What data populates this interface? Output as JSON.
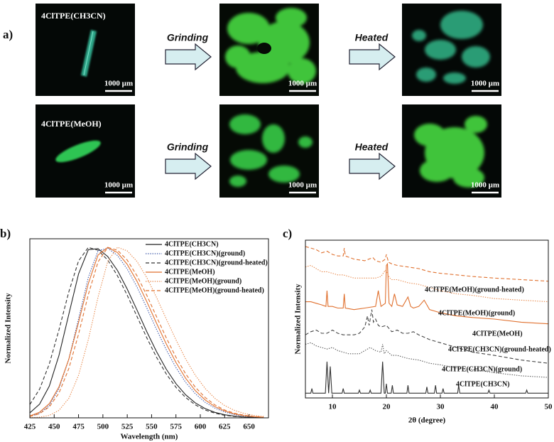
{
  "panel_a": {
    "label": "a)",
    "steps": [
      "Grinding",
      "Heated"
    ],
    "rows": [
      {
        "sample": "4ClTPE(CH3CN)",
        "scale_bars": [
          "1000 µm",
          "1000 µm",
          "1000 µm"
        ]
      },
      {
        "sample": "4ClTPE(MeOH)",
        "scale_bars": [
          "1000 µm",
          "1000 µm",
          "1000 µm"
        ]
      }
    ]
  },
  "chart_data": [
    {
      "type": "line",
      "panel_label": "b)",
      "xlabel": "Wavelength (nm)",
      "ylabel": "Normalized Intensity",
      "xlim": [
        425,
        670
      ],
      "xticks": [
        425,
        450,
        475,
        500,
        525,
        550,
        575,
        600,
        625,
        650
      ],
      "ylim": [
        0,
        1.05
      ],
      "legend": "top-right",
      "x": [
        425,
        435,
        445,
        455,
        465,
        475,
        485,
        495,
        505,
        515,
        525,
        535,
        545,
        555,
        565,
        575,
        585,
        595,
        605,
        615,
        625,
        635,
        645,
        655,
        665
      ],
      "series": [
        {
          "name": "4ClTPE(CH3CN)",
          "color": "#222222",
          "style": "solid",
          "values": [
            0.029,
            0.08,
            0.186,
            0.367,
            0.607,
            0.844,
            0.986,
            0.992,
            0.946,
            0.864,
            0.755,
            0.632,
            0.506,
            0.389,
            0.286,
            0.201,
            0.135,
            0.087,
            0.054,
            0.032,
            0.018,
            0.01,
            0.005,
            0.003,
            0.001
          ]
        },
        {
          "name": "4ClTPE(CH3CN)(ground)",
          "color": "#3a55a8",
          "style": "dotted",
          "values": [
            0.008,
            0.026,
            0.072,
            0.172,
            0.345,
            0.581,
            0.823,
            0.979,
            0.995,
            0.952,
            0.873,
            0.767,
            0.645,
            0.519,
            0.4,
            0.295,
            0.208,
            0.141,
            0.091,
            0.057,
            0.034,
            0.019,
            0.01,
            0.005,
            0.003
          ]
        },
        {
          "name": "4ClTPE(CH3CN)(ground-heated)",
          "color": "#333333",
          "style": "dashed",
          "values": [
            0.078,
            0.168,
            0.316,
            0.517,
            0.739,
            0.92,
            0.999,
            0.983,
            0.925,
            0.833,
            0.719,
            0.594,
            0.47,
            0.356,
            0.258,
            0.179,
            0.119,
            0.076,
            0.046,
            0.027,
            0.015,
            0.008,
            0.004,
            0.002,
            0.001
          ]
        },
        {
          "name": "4ClTPE(MeOH)",
          "color": "#e0702e",
          "style": "solid",
          "values": [
            0.011,
            0.033,
            0.083,
            0.182,
            0.344,
            0.56,
            0.787,
            0.954,
            0.999,
            0.969,
            0.9,
            0.801,
            0.682,
            0.556,
            0.434,
            0.325,
            0.232,
            0.159,
            0.105,
            0.066,
            0.04,
            0.023,
            0.013,
            0.007,
            0.003
          ]
        },
        {
          "name": "4ClTPE(MeOH)(ground)",
          "color": "#e8884a",
          "style": "dotted",
          "values": [
            0.001,
            0.004,
            0.014,
            0.044,
            0.114,
            0.249,
            0.458,
            0.707,
            0.917,
            1,
            0.979,
            0.917,
            0.823,
            0.707,
            0.581,
            0.458,
            0.345,
            0.249,
            0.172,
            0.114,
            0.072,
            0.044,
            0.026,
            0.014,
            0.008
          ]
        },
        {
          "name": "4ClTPE(MeOH)(ground-heated)",
          "color": "#e0702e",
          "style": "dashed",
          "values": [
            0.008,
            0.024,
            0.064,
            0.146,
            0.289,
            0.491,
            0.722,
            0.914,
            0.999,
            0.983,
            0.925,
            0.833,
            0.719,
            0.594,
            0.47,
            0.356,
            0.258,
            0.179,
            0.119,
            0.076,
            0.046,
            0.027,
            0.015,
            0.008,
            0.004
          ]
        }
      ]
    },
    {
      "type": "line",
      "panel_label": "c)",
      "xlabel": "2θ (degree)",
      "ylabel": "Normalized Intensity",
      "xlim": [
        5,
        50
      ],
      "xticks": [
        10,
        20,
        30,
        40,
        50
      ],
      "ylim": [
        0,
        100
      ],
      "series": [
        {
          "name": "4ClTPE(CH3CN)",
          "color": "#333333",
          "style": "solid",
          "x": [
            5,
            6,
            6.2,
            6.4,
            8.7,
            9.0,
            9.3,
            9.6,
            9.9,
            11.8,
            12,
            12.2,
            14.8,
            15,
            15.2,
            16.8,
            17,
            17.2,
            19.0,
            19.3,
            19.6,
            19.8,
            20,
            20.2,
            20.9,
            21.1,
            21.3,
            23.8,
            24,
            24.2,
            27.3,
            27.5,
            27.7,
            28.9,
            29.1,
            29.3,
            30.3,
            30.5,
            30.7,
            33.2,
            33.4,
            33.6,
            38.8,
            39,
            39.2,
            45.8,
            46,
            46.2,
            50
          ],
          "values": [
            3,
            3,
            6,
            3,
            3,
            23,
            3,
            20,
            3,
            3,
            6,
            3,
            3,
            5,
            3,
            3,
            5,
            3,
            3,
            23,
            3,
            3,
            9,
            3,
            3,
            8,
            3,
            3,
            8,
            3,
            3,
            7,
            3,
            3,
            8,
            3,
            3,
            6,
            3,
            3,
            8,
            3,
            3,
            5,
            3,
            3,
            5,
            3,
            3
          ]
        },
        {
          "name": "4ClTPE(CH3CN)(ground)",
          "color": "#555555",
          "style": "dotted",
          "x": [
            5,
            6,
            7,
            8,
            9,
            10,
            11,
            12,
            13,
            14,
            15,
            16,
            17,
            18,
            19,
            19.3,
            19.6,
            20,
            21,
            22,
            24,
            26,
            28,
            30,
            33,
            36,
            40,
            45,
            50
          ],
          "values": [
            34,
            35,
            33,
            32,
            31,
            32,
            30,
            29,
            28,
            28,
            28,
            30,
            32,
            30,
            29,
            34,
            28,
            30,
            27,
            27,
            25,
            24,
            22,
            21,
            19,
            18,
            16,
            14,
            13
          ]
        },
        {
          "name": "4ClTPE(CH3CN)(ground-heated)",
          "color": "#444444",
          "style": "dashed",
          "x": [
            5,
            6,
            7,
            8,
            9,
            10,
            11,
            12,
            13,
            14,
            15,
            16,
            16.5,
            16.8,
            17.3,
            17.6,
            18,
            18.5,
            19,
            20,
            20.5,
            21,
            22,
            23,
            24,
            25,
            26,
            28,
            30,
            33,
            36,
            40,
            45,
            50
          ],
          "values": [
            40,
            42,
            43,
            41,
            41,
            43,
            41,
            40,
            40,
            40,
            41,
            45,
            52,
            46,
            56,
            48,
            50,
            46,
            45,
            46,
            44,
            42,
            43,
            41,
            41,
            42,
            40,
            37,
            35,
            32,
            29,
            27,
            24,
            22
          ]
        },
        {
          "name": "4ClTPE(MeOH)",
          "color": "#e0702e",
          "style": "solid",
          "x": [
            5,
            6,
            7,
            8,
            8.8,
            9,
            9.2,
            10,
            11,
            12,
            12.2,
            12.4,
            14,
            16,
            18,
            18.5,
            19,
            19.8,
            20,
            20.2,
            20.5,
            21,
            21.5,
            22,
            23,
            24,
            24.5,
            25,
            26,
            27,
            28,
            30,
            33,
            36,
            40,
            45,
            50
          ],
          "values": [
            61,
            61,
            60,
            59,
            58,
            68,
            58,
            58,
            57,
            57,
            66,
            57,
            56,
            57,
            58,
            68,
            58,
            60,
            84,
            85,
            60,
            58,
            66,
            59,
            58,
            64,
            58,
            57,
            58,
            62,
            56,
            54,
            52,
            51,
            50,
            48,
            47
          ]
        },
        {
          "name": "4ClTPE(MeOH)(ground)",
          "color": "#e8884a",
          "style": "dotted",
          "x": [
            5,
            6,
            7,
            8,
            9,
            10,
            11,
            12,
            13,
            14,
            16,
            18,
            19,
            19.8,
            20.2,
            20.6,
            21,
            22,
            24,
            26,
            28,
            30,
            33,
            36,
            40,
            45,
            50
          ],
          "values": [
            83,
            84,
            82,
            80,
            80,
            79,
            78,
            78,
            77,
            76,
            76,
            76,
            77,
            81,
            79,
            76,
            75,
            75,
            73,
            72,
            70,
            68,
            66,
            65,
            63,
            62,
            61
          ]
        },
        {
          "name": "4ClTPE(MeOH)(ground-heated)",
          "color": "#e0702e",
          "style": "dashed",
          "x": [
            5,
            6,
            7,
            8,
            9,
            10,
            11,
            12,
            12.2,
            12.4,
            14,
            16,
            17.5,
            18,
            19,
            19.8,
            20,
            20.4,
            21,
            22,
            24,
            26,
            28,
            30,
            33,
            36,
            40,
            45,
            50
          ],
          "values": [
            96,
            95,
            94,
            92,
            93,
            91,
            90,
            90,
            95,
            90,
            88,
            87,
            89,
            87,
            86,
            88,
            91,
            86,
            85,
            84,
            83,
            82,
            80,
            79,
            78,
            77,
            76,
            75,
            74
          ]
        }
      ]
    }
  ]
}
